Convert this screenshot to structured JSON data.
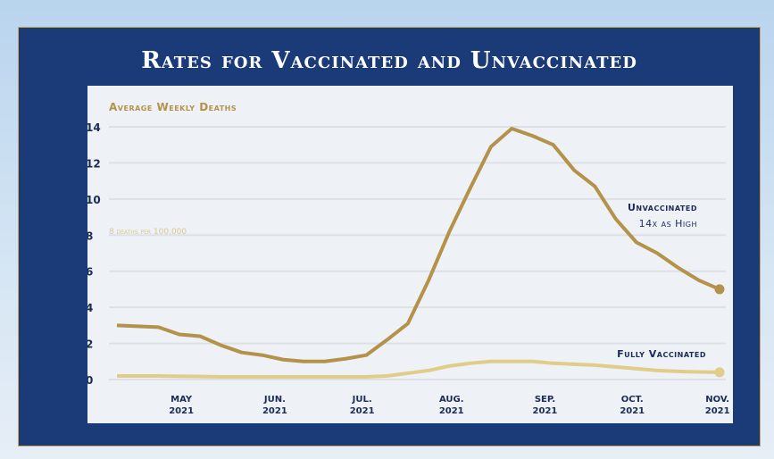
{
  "title": "Rates for Vaccinated and Unvaccinated",
  "colors": {
    "frame": "#1a3a78",
    "unvaccinated": "#b4924a",
    "vaccinated": "#e2cc8a",
    "text": "#1b2b55",
    "accent": "#c9a85a"
  },
  "chart_data": {
    "type": "line",
    "title": "Average Weekly Deaths",
    "annotation": "8 deaths per 100,000",
    "ylabel": "Average Weekly Deaths",
    "xlabel": "",
    "ylim": [
      0,
      14
    ],
    "yticks": [
      0,
      2,
      4,
      6,
      8,
      10,
      12,
      14
    ],
    "grid": true,
    "xlim": [
      0,
      29
    ],
    "x_ticks": [
      {
        "x": 3.1,
        "month": "MAY",
        "year": "2021"
      },
      {
        "x": 7.6,
        "month": "JUN.",
        "year": "2021"
      },
      {
        "x": 11.8,
        "month": "JUL.",
        "year": "2021"
      },
      {
        "x": 16.1,
        "month": "AUG.",
        "year": "2021"
      },
      {
        "x": 20.6,
        "month": "SEP.",
        "year": "2021"
      },
      {
        "x": 24.8,
        "month": "OCT.",
        "year": "2021"
      },
      {
        "x": 28.9,
        "month": "NOV.",
        "year": "2021"
      }
    ],
    "series": [
      {
        "name": "Unvaccinated",
        "label": "Unvaccinated",
        "sublabel": "14x as High",
        "values": [
          3.0,
          2.95,
          2.9,
          2.5,
          2.4,
          1.9,
          1.5,
          1.35,
          1.1,
          1.0,
          1.0,
          1.15,
          1.35,
          2.2,
          3.1,
          5.5,
          8.2,
          10.6,
          12.9,
          13.9,
          13.5,
          13.0,
          11.6,
          10.7,
          8.9,
          7.6,
          7.0,
          6.2,
          5.5,
          5.0
        ]
      },
      {
        "name": "Fully Vaccinated",
        "label": "Fully Vaccinated",
        "values": [
          0.2,
          0.2,
          0.2,
          0.18,
          0.17,
          0.15,
          0.15,
          0.15,
          0.15,
          0.15,
          0.15,
          0.15,
          0.15,
          0.2,
          0.35,
          0.5,
          0.75,
          0.9,
          1.0,
          1.0,
          1.0,
          0.9,
          0.85,
          0.8,
          0.7,
          0.6,
          0.5,
          0.45,
          0.42,
          0.4
        ]
      }
    ]
  }
}
